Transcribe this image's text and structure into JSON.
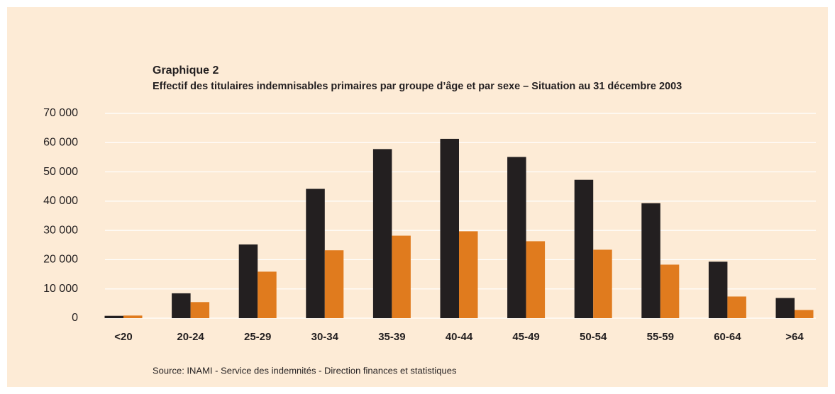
{
  "chart_data": {
    "type": "bar",
    "title": "Graphique 2",
    "subtitle": "Effectif des titulaires indemnisables primaires par groupe d’âge et par sexe – Situation au 31 décembre 2003",
    "source": "Source: INAMI - Service des indemnités - Direction finances et statistiques",
    "categories": [
      "<20",
      "20-24",
      "25-29",
      "30-34",
      "35-39",
      "40-44",
      "45-49",
      "50-54",
      "55-59",
      "60-64",
      ">64"
    ],
    "series": [
      {
        "color": "#231f20",
        "values": [
          800,
          8500,
          25200,
          44200,
          57800,
          61300,
          55100,
          47300,
          39300,
          19300,
          6900
        ]
      },
      {
        "color": "#e07b1e",
        "values": [
          900,
          5500,
          15900,
          23200,
          28200,
          29700,
          26300,
          23400,
          18300,
          7400,
          2800
        ]
      }
    ],
    "ylim": [
      0,
      70000
    ],
    "yticks": [
      0,
      {
        "value": 10000,
        "label": "10 000"
      },
      {
        "value": 20000,
        "label": "20 000"
      },
      {
        "value": 30000,
        "label": "30 000"
      },
      {
        "value": 40000,
        "label": "40 000"
      },
      {
        "value": 50000,
        "label": "50 000"
      },
      {
        "value": 60000,
        "label": "60 000"
      },
      {
        "value": 70000,
        "label": "70 000"
      }
    ],
    "grid": true
  }
}
